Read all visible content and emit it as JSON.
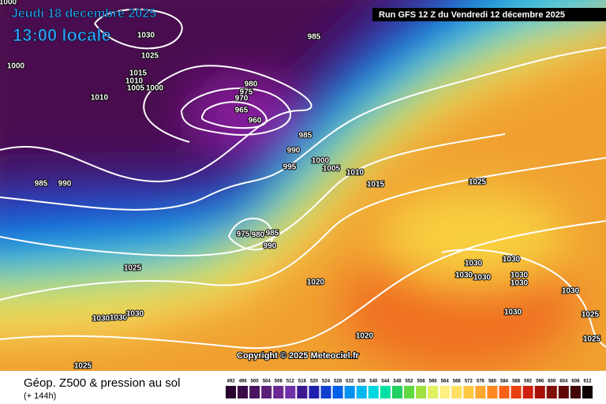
{
  "header": {
    "date": "Jeudi 18 decembre 2025",
    "time": "13:00 locale",
    "run": "Run GFS 12 Z du Vendredi 12 décembre 2025"
  },
  "copyright": "Copyright © 2025 Meteociel.fr",
  "footer": {
    "title": "Géop. Z500 & pression au sol",
    "lead": "(+ 144h)"
  },
  "isobars": [
    1000,
    1030,
    985,
    1025,
    1000,
    1015,
    1010,
    1005,
    1000,
    1010,
    980,
    975,
    970,
    965,
    960,
    985,
    990,
    995,
    1000,
    1005,
    1010,
    1015,
    1025,
    985,
    990,
    975,
    980,
    985,
    990,
    1025,
    1030,
    1030,
    1030,
    1030,
    1030,
    1030,
    1020,
    1030,
    1030,
    1030,
    1030,
    1030,
    1025,
    1025,
    1020,
    1025
  ],
  "legend": {
    "labels": [
      492,
      496,
      500,
      504,
      508,
      512,
      516,
      520,
      524,
      528,
      532,
      536,
      540,
      544,
      548,
      552,
      556,
      560,
      564,
      568,
      572,
      576,
      580,
      584,
      588,
      592,
      596,
      600,
      604,
      608,
      612
    ],
    "colors": [
      "#2a0030",
      "#3a0a48",
      "#4a1460",
      "#5a1e78",
      "#6a2890",
      "#7030a8",
      "#3c1890",
      "#2020b0",
      "#1040d0",
      "#0060e8",
      "#0090f0",
      "#00b8f0",
      "#00d8e0",
      "#00e0a0",
      "#20d060",
      "#60d840",
      "#a0e040",
      "#e0f060",
      "#fff080",
      "#ffe060",
      "#ffc840",
      "#ffa830",
      "#ff8820",
      "#f86018",
      "#e84010",
      "#d02010",
      "#a81008",
      "#801008",
      "#600808",
      "#400404",
      "#100000"
    ]
  }
}
